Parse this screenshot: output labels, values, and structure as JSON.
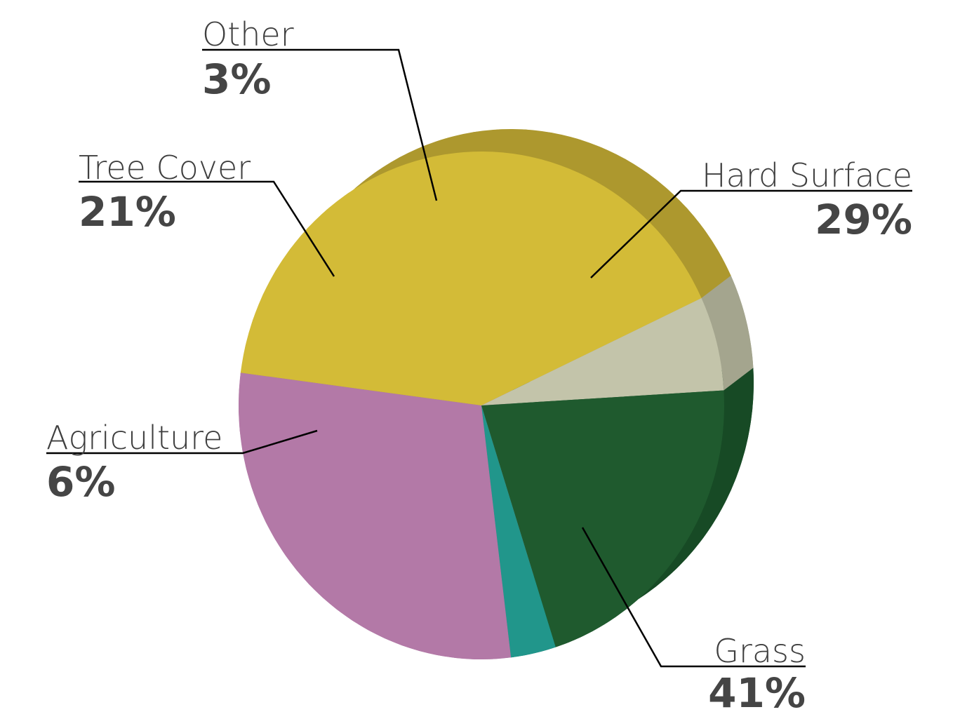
{
  "chart_data": {
    "type": "pie",
    "slices": [
      {
        "label": "Hard Surface",
        "value": 29,
        "value_label": "29%",
        "color": "#b379a7",
        "side_color": "#926488"
      },
      {
        "label": "Grass",
        "value": 41,
        "value_label": "41%",
        "color": "#d3bb37",
        "side_color": "#ad982e"
      },
      {
        "label": "Agriculture",
        "value": 6,
        "value_label": "6%",
        "color": "#c3c4aa",
        "side_color": "#a4a58e"
      },
      {
        "label": "Tree Cover",
        "value": 21,
        "value_label": "21%",
        "color": "#1f5a2e",
        "side_color": "#174a25"
      },
      {
        "label": "Other",
        "value": 3,
        "value_label": "3%",
        "color": "#21968b",
        "side_color": "#187a70"
      }
    ],
    "style": "3d",
    "legend": "none",
    "title": ""
  }
}
